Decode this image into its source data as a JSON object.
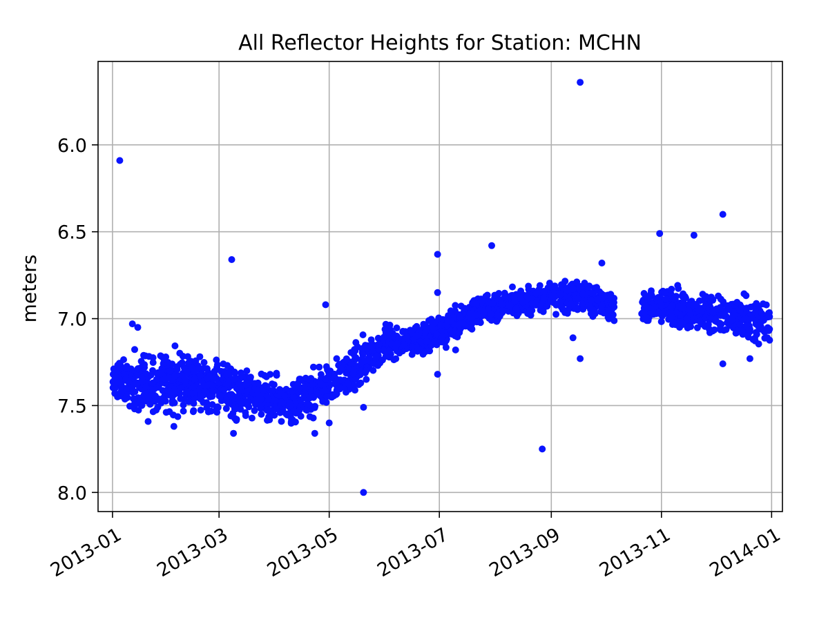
{
  "chart_data": {
    "type": "scatter",
    "title": "All Reflector Heights for Station: MCHN",
    "xlabel": "",
    "ylabel": "meters",
    "x_type": "date",
    "xlim": [
      "2012-12-24",
      "2014-01-07"
    ],
    "ylim": [
      8.11,
      5.52
    ],
    "y_inverted": true,
    "grid": true,
    "x_ticks": [
      "2013-01-01",
      "2013-03-01",
      "2013-05-01",
      "2013-07-01",
      "2013-09-01",
      "2013-11-01",
      "2014-01-01"
    ],
    "x_tick_labels": [
      "2013-01",
      "2013-03",
      "2013-05",
      "2013-07",
      "2013-09",
      "2013-11",
      "2014-01"
    ],
    "y_ticks": [
      6.0,
      6.5,
      7.0,
      7.5,
      8.0
    ],
    "y_tick_labels": [
      "6.0",
      "6.5",
      "7.0",
      "7.5",
      "8.0"
    ],
    "marker_color": "#0a14ff",
    "series": [
      {
        "trend": [
          [
            "2013-01-01",
            7.35,
            0.05
          ],
          [
            "2013-01-15",
            7.38,
            0.09
          ],
          [
            "2013-02-01",
            7.38,
            0.08
          ],
          [
            "2013-02-15",
            7.38,
            0.07
          ],
          [
            "2013-03-01",
            7.4,
            0.07
          ],
          [
            "2013-03-15",
            7.42,
            0.07
          ],
          [
            "2013-04-01",
            7.45,
            0.06
          ],
          [
            "2013-04-10",
            7.5,
            0.07
          ],
          [
            "2013-04-20",
            7.42,
            0.07
          ],
          [
            "2013-05-01",
            7.38,
            0.05
          ],
          [
            "2013-05-15",
            7.28,
            0.06
          ],
          [
            "2013-06-01",
            7.15,
            0.05
          ],
          [
            "2013-06-15",
            7.13,
            0.04
          ],
          [
            "2013-07-01",
            7.07,
            0.04
          ],
          [
            "2013-07-15",
            7.0,
            0.04
          ],
          [
            "2013-08-01",
            6.92,
            0.04
          ],
          [
            "2013-08-15",
            6.9,
            0.03
          ],
          [
            "2013-09-01",
            6.88,
            0.04
          ],
          [
            "2013-09-15",
            6.87,
            0.04
          ],
          [
            "2013-10-05",
            6.92,
            0.04
          ],
          [
            "2013-10-22",
            6.92,
            0.04
          ],
          [
            "2013-11-10",
            6.95,
            0.05
          ],
          [
            "2013-12-01",
            6.97,
            0.05
          ],
          [
            "2013-12-15",
            7.02,
            0.06
          ],
          [
            "2013-12-31",
            7.0,
            0.06
          ]
        ],
        "gap": [
          "2013-10-06",
          "2013-10-21"
        ],
        "outliers": [
          [
            "2013-01-05",
            6.09
          ],
          [
            "2013-03-08",
            6.66
          ],
          [
            "2013-04-29",
            6.92
          ],
          [
            "2013-05-20",
            8.0
          ],
          [
            "2013-06-30",
            6.63
          ],
          [
            "2013-06-30",
            6.85
          ],
          [
            "2013-06-30",
            7.32
          ],
          [
            "2013-05-20",
            7.51
          ],
          [
            "2013-07-30",
            6.58
          ],
          [
            "2013-08-27",
            7.75
          ],
          [
            "2013-09-17",
            5.64
          ],
          [
            "2013-09-17",
            7.23
          ],
          [
            "2013-09-29",
            6.68
          ],
          [
            "2013-10-31",
            6.51
          ],
          [
            "2013-11-19",
            6.52
          ],
          [
            "2013-12-05",
            6.4
          ],
          [
            "2013-01-12",
            7.03
          ],
          [
            "2013-01-15",
            7.05
          ],
          [
            "2013-02-04",
            7.62
          ],
          [
            "2013-03-09",
            7.66
          ],
          [
            "2013-04-23",
            7.66
          ],
          [
            "2013-05-01",
            7.6
          ],
          [
            "2013-12-05",
            7.26
          ],
          [
            "2013-12-20",
            7.23
          ],
          [
            "2013-09-13",
            7.11
          ],
          [
            "2013-07-10",
            7.18
          ]
        ]
      }
    ]
  }
}
